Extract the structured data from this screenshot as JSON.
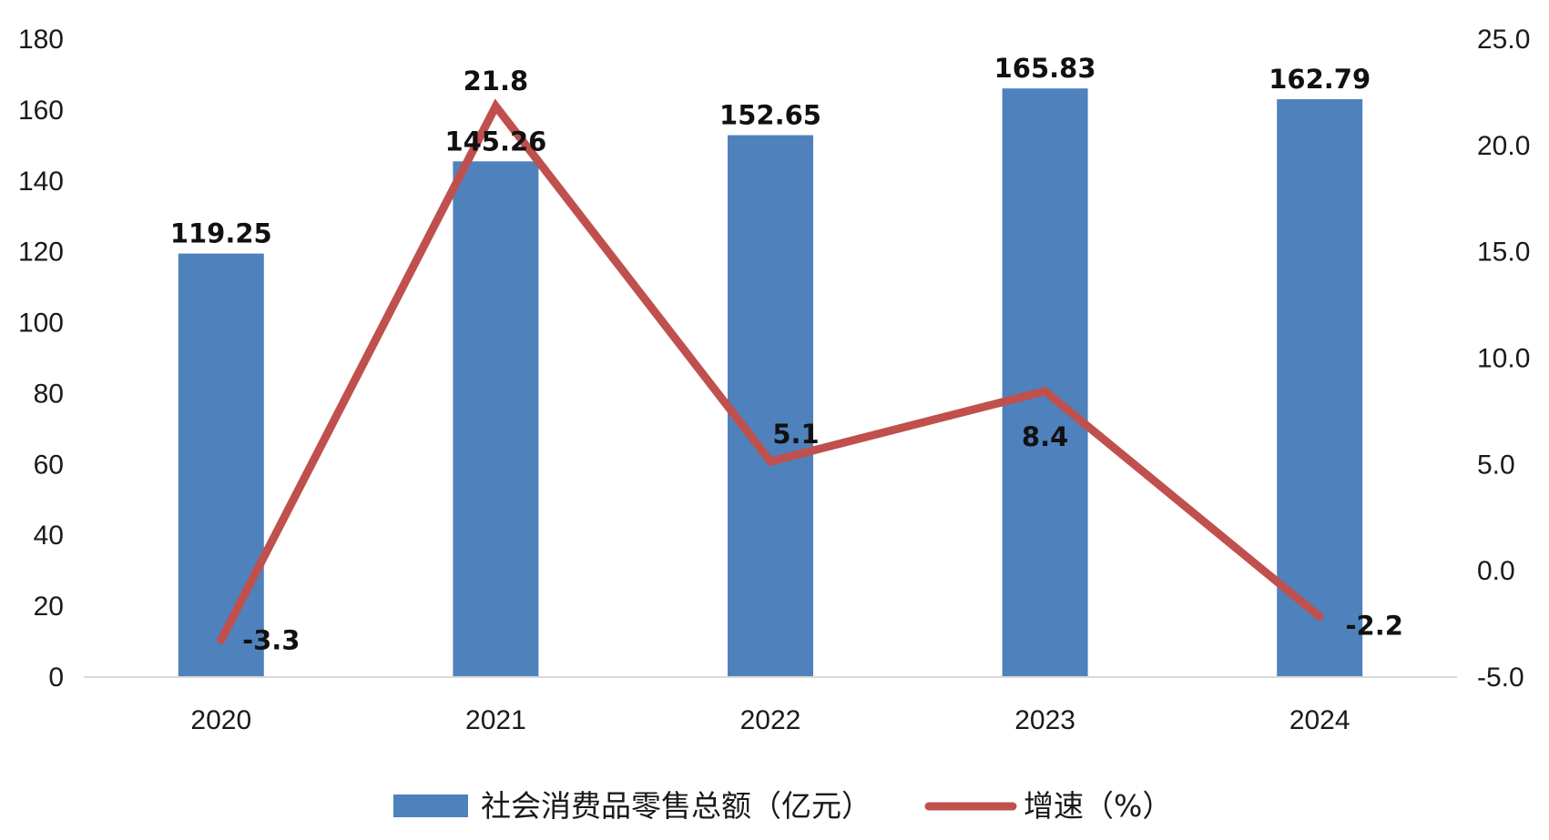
{
  "chart_data": {
    "type": "bar",
    "categories": [
      "2020",
      "2021",
      "2022",
      "2023",
      "2024"
    ],
    "series": [
      {
        "name": "社会消费品零售总额（亿元）",
        "type": "bar",
        "axis": "left",
        "values": [
          119.25,
          145.26,
          152.65,
          165.83,
          162.79
        ],
        "labels": [
          "119.25",
          "145.26",
          "152.65",
          "165.83",
          "162.79"
        ],
        "color": "#4f81bd"
      },
      {
        "name": "增速（%）",
        "type": "line",
        "axis": "right",
        "values": [
          -3.3,
          21.8,
          5.1,
          8.4,
          -2.2
        ],
        "labels": [
          "-3.3",
          "21.8",
          "5.1",
          "8.4",
          "-2.2"
        ],
        "color": "#c0504d"
      }
    ],
    "y_left": {
      "range": [
        0,
        180
      ],
      "ticks": [
        "0",
        "20",
        "40",
        "60",
        "80",
        "100",
        "120",
        "140",
        "160",
        "180"
      ]
    },
    "y_right": {
      "range": [
        -5,
        25
      ],
      "ticks": [
        "-5.0",
        "0.0",
        "5.0",
        "10.0",
        "15.0",
        "20.0",
        "25.0"
      ]
    },
    "grid": false,
    "legend_position": "bottom",
    "title": "",
    "xlabel": "",
    "ylabel": ""
  }
}
